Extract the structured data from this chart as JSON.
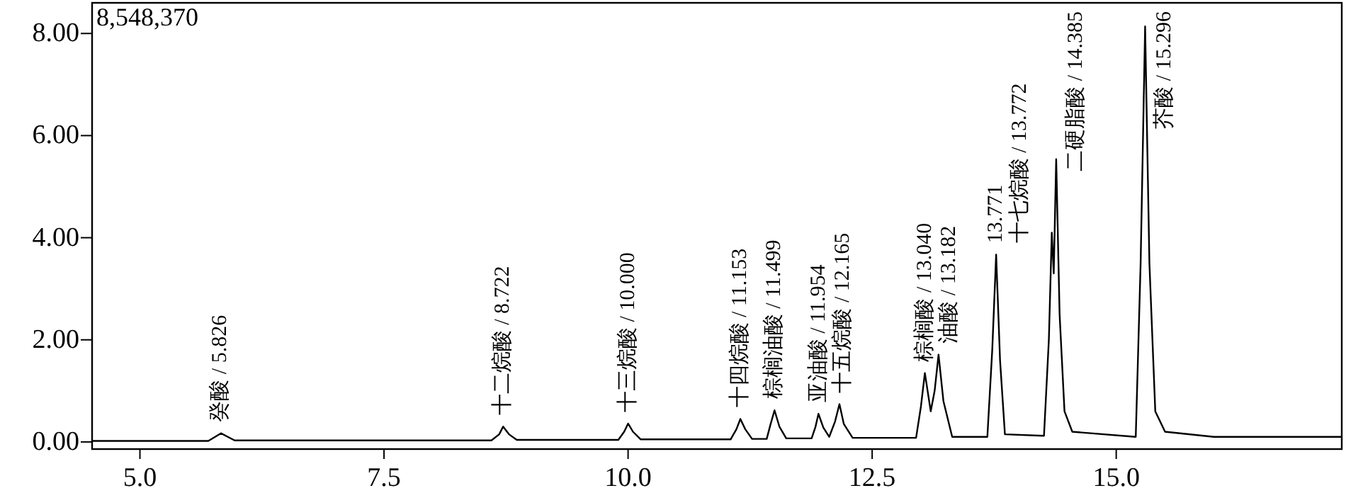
{
  "chart_data": {
    "type": "line",
    "grid": false,
    "xlim": [
      4.51,
      17.31
    ],
    "ylim": [
      -0.14,
      8.6
    ],
    "xticks": [
      {
        "value": 5,
        "label": "5.0"
      },
      {
        "value": 7.5,
        "label": "7.5"
      },
      {
        "value": 10,
        "label": "10.0"
      },
      {
        "value": 12.5,
        "label": "12.5"
      },
      {
        "value": 15,
        "label": "15.0"
      }
    ],
    "yticks": [
      {
        "value": 0,
        "label": "0.00"
      },
      {
        "value": 2,
        "label": "2.00"
      },
      {
        "value": 4,
        "label": "4.00"
      },
      {
        "value": 6,
        "label": "6.00"
      },
      {
        "value": 8,
        "label": "8.00"
      }
    ],
    "series": [
      {
        "color": "#000000",
        "x": [
          4.51,
          5.7,
          5.77,
          5.83,
          5.9,
          5.97,
          8.6,
          8.68,
          8.72,
          8.78,
          8.86,
          9.9,
          9.96,
          10.0,
          10.05,
          10.13,
          11.05,
          11.11,
          11.15,
          11.2,
          11.27,
          11.42,
          11.46,
          11.5,
          11.55,
          11.62,
          11.88,
          11.92,
          11.95,
          12.0,
          12.06,
          12.12,
          12.165,
          12.21,
          12.3,
          12.95,
          13.0,
          13.04,
          13.1,
          13.14,
          13.18,
          13.23,
          13.32,
          13.68,
          13.73,
          13.77,
          13.81,
          13.86,
          14.26,
          14.31,
          14.34,
          14.36,
          14.385,
          14.42,
          14.47,
          14.55,
          15.2,
          15.25,
          15.296,
          15.34,
          15.4,
          15.5,
          16.0,
          17.31
        ],
        "values": [
          0.02,
          0.02,
          0.1,
          0.17,
          0.1,
          0.03,
          0.03,
          0.15,
          0.3,
          0.15,
          0.04,
          0.04,
          0.2,
          0.36,
          0.2,
          0.05,
          0.05,
          0.25,
          0.45,
          0.25,
          0.06,
          0.06,
          0.35,
          0.62,
          0.3,
          0.07,
          0.07,
          0.3,
          0.55,
          0.28,
          0.1,
          0.4,
          0.74,
          0.35,
          0.08,
          0.08,
          0.7,
          1.35,
          0.6,
          1.0,
          1.71,
          0.8,
          0.1,
          0.1,
          1.8,
          3.67,
          1.6,
          0.15,
          0.12,
          2.0,
          4.1,
          3.3,
          5.54,
          2.5,
          0.6,
          0.2,
          0.1,
          3.5,
          8.14,
          3.5,
          0.6,
          0.2,
          0.1,
          0.1
        ]
      }
    ],
    "annotations": [
      "8,548,370",
      {
        "text": "癸酸 / 5.826",
        "x": 5.826,
        "y": 0.17
      },
      {
        "text": "十二烷酸 / 8.722",
        "x": 8.722,
        "y": 0.3
      },
      {
        "text": "十三烷酸 / 10.000",
        "x": 10.0,
        "y": 0.36
      },
      {
        "text": "十四烷酸 / 11.153",
        "x": 11.153,
        "y": 0.45
      },
      {
        "text": "棕榈油酸 / 11.499",
        "x": 11.499,
        "y": 0.62
      },
      {
        "text": "亚油酸 / 11.954",
        "x": 11.954,
        "y": 0.55
      },
      {
        "text": "十五烷酸 / 12.165",
        "x": 12.165,
        "y": 0.74
      },
      {
        "text": "棕榈酸 / 13.040",
        "x": 13.04,
        "y": 1.35
      },
      {
        "text": "油酸 / 13.182",
        "x": 13.18,
        "y": 1.71
      },
      {
        "text": "13.771",
        "x": 13.77,
        "y": 3.67
      },
      {
        "text": "十七烷酸 / 13.772",
        "x": 13.77,
        "y": 3.67
      },
      {
        "text": "二硬脂酸 / 14.385",
        "x": 14.385,
        "y": 5.54
      },
      {
        "text": "芥酸 / 15.296",
        "x": 15.296,
        "y": 8.14
      }
    ]
  }
}
